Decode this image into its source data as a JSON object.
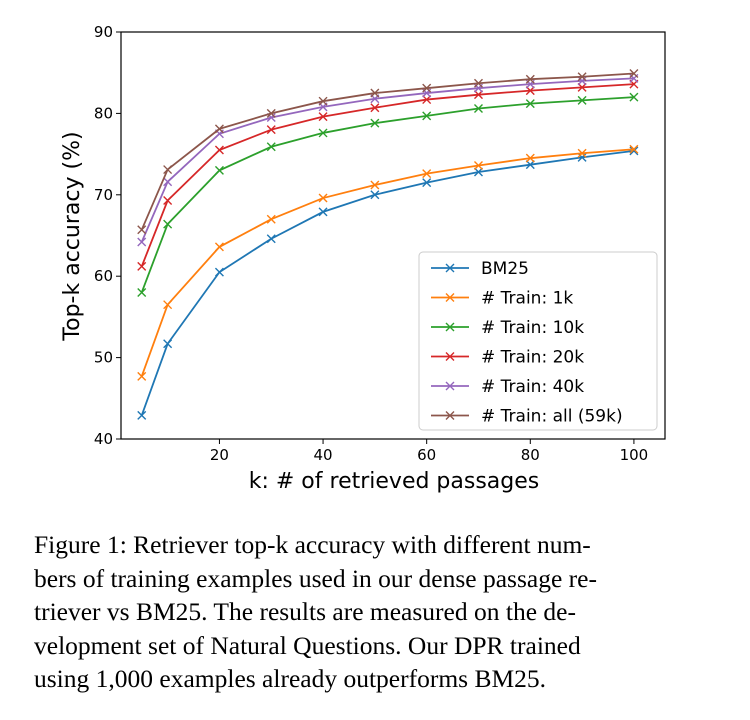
{
  "chart_data": {
    "type": "line",
    "xlabel": "k: # of retrieved passages",
    "ylabel": "Top-k accuracy (%)",
    "xlim": [
      1,
      106
    ],
    "ylim": [
      40,
      90
    ],
    "xticks": [
      20,
      40,
      60,
      80,
      100
    ],
    "yticks": [
      40,
      50,
      60,
      70,
      80,
      90
    ],
    "x": [
      5,
      10,
      20,
      30,
      40,
      50,
      60,
      70,
      80,
      90,
      100
    ],
    "grid": false,
    "legend_position": "lower-right",
    "series": [
      {
        "name": "BM25",
        "color": "#1f77b4",
        "values": [
          42.9,
          51.7,
          60.5,
          64.6,
          67.9,
          70.0,
          71.5,
          72.8,
          73.7,
          74.6,
          75.4
        ]
      },
      {
        "name": "# Train: 1k",
        "color": "#ff7f0e",
        "values": [
          47.7,
          56.5,
          63.6,
          67.0,
          69.6,
          71.2,
          72.6,
          73.6,
          74.5,
          75.1,
          75.6
        ]
      },
      {
        "name": "# Train: 10k",
        "color": "#2ca02c",
        "values": [
          58.0,
          66.4,
          73.0,
          75.9,
          77.6,
          78.8,
          79.7,
          80.6,
          81.2,
          81.6,
          82.0
        ]
      },
      {
        "name": "# Train: 20k",
        "color": "#d62728",
        "values": [
          61.2,
          69.3,
          75.5,
          78.0,
          79.6,
          80.7,
          81.7,
          82.3,
          82.8,
          83.2,
          83.6
        ]
      },
      {
        "name": "# Train: 40k",
        "color": "#9467bd",
        "values": [
          64.2,
          71.6,
          77.5,
          79.5,
          80.8,
          81.8,
          82.5,
          83.1,
          83.6,
          84.0,
          84.3
        ]
      },
      {
        "name": "# Train: all (59k)",
        "color": "#8c564b",
        "values": [
          65.7,
          73.1,
          78.1,
          80.0,
          81.5,
          82.5,
          83.1,
          83.7,
          84.2,
          84.5,
          84.9
        ]
      }
    ]
  },
  "caption": {
    "lines": [
      "Figure 1: Retriever top-k accuracy with different num-",
      "bers of training examples used in our dense passage re-",
      "triever vs BM25.  The results are measured on the de-",
      "velopment set of Natural Questions.  Our DPR trained",
      "using 1,000 examples already outperforms BM25."
    ]
  }
}
